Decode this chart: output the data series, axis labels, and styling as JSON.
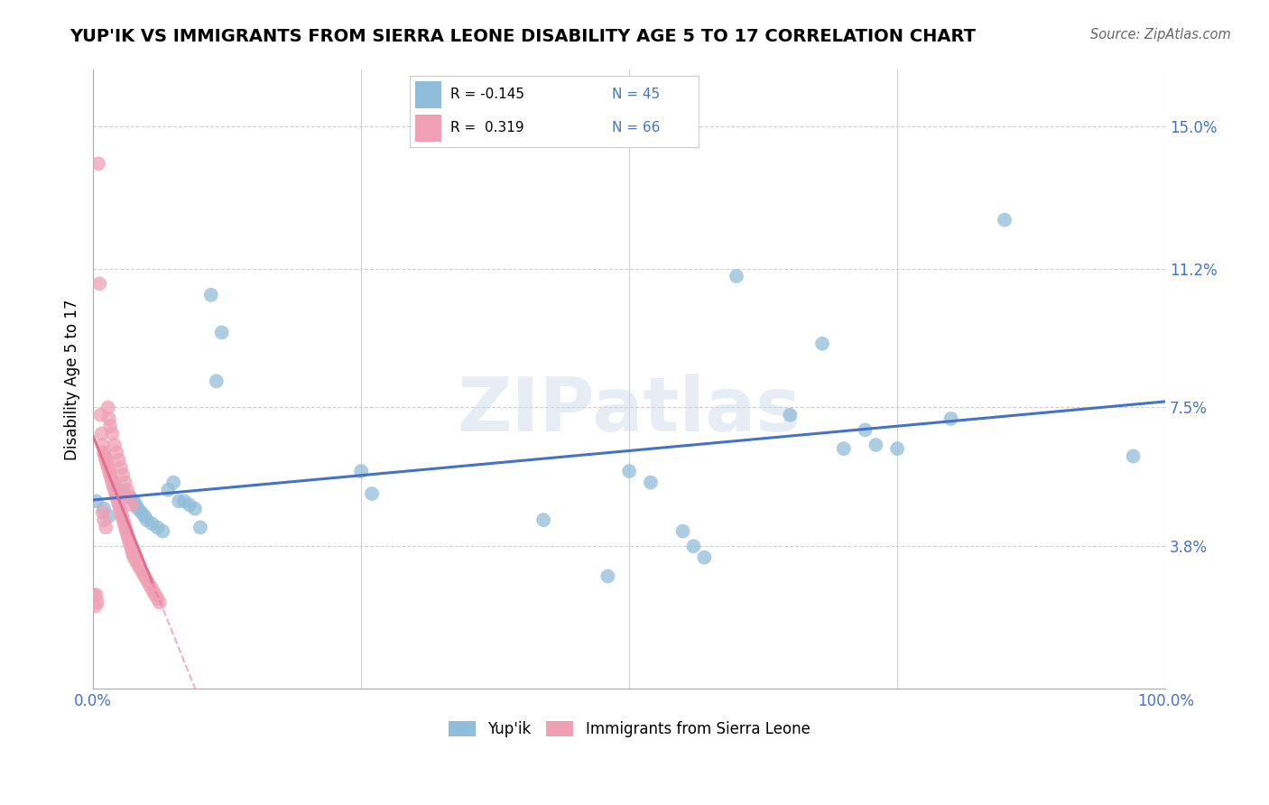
{
  "title": "YUP'IK VS IMMIGRANTS FROM SIERRA LEONE DISABILITY AGE 5 TO 17 CORRELATION CHART",
  "source": "Source: ZipAtlas.com",
  "ylabel": "Disability Age 5 to 17",
  "xlim": [
    0.0,
    1.0
  ],
  "ylim": [
    0.0,
    0.165
  ],
  "yticks": [
    0.038,
    0.075,
    0.112,
    0.15
  ],
  "ytick_labels": [
    "3.8%",
    "7.5%",
    "11.2%",
    "15.0%"
  ],
  "xtick_vals": [
    0.0,
    0.25,
    0.5,
    0.75,
    1.0
  ],
  "xtick_labels": [
    "0.0%",
    "",
    "",
    "",
    "100.0%"
  ],
  "legend_r1": "R = -0.145",
  "legend_n1": "N = 45",
  "legend_r2": "R =  0.319",
  "legend_n2": "N = 66",
  "blue_color": "#90bdd9",
  "pink_color": "#f0a0b5",
  "blue_line_color": "#4472C4",
  "pink_line_color": "#e07090",
  "grid_color": "#d0d0d0",
  "watermark": "ZIPatlas",
  "blue_scatter_x": [
    0.003,
    0.01,
    0.015,
    0.02,
    0.025,
    0.03,
    0.035,
    0.038,
    0.04,
    0.042,
    0.045,
    0.048,
    0.05,
    0.055,
    0.06,
    0.065,
    0.07,
    0.075,
    0.08,
    0.085,
    0.09,
    0.095,
    0.1,
    0.11,
    0.115,
    0.12,
    0.25,
    0.26,
    0.42,
    0.48,
    0.5,
    0.52,
    0.55,
    0.56,
    0.57,
    0.6,
    0.65,
    0.68,
    0.7,
    0.72,
    0.73,
    0.75,
    0.8,
    0.85,
    0.97
  ],
  "blue_scatter_y": [
    0.05,
    0.048,
    0.046,
    0.055,
    0.053,
    0.052,
    0.051,
    0.05,
    0.049,
    0.048,
    0.047,
    0.046,
    0.045,
    0.044,
    0.043,
    0.042,
    0.053,
    0.055,
    0.05,
    0.05,
    0.049,
    0.048,
    0.043,
    0.105,
    0.082,
    0.095,
    0.058,
    0.052,
    0.045,
    0.03,
    0.058,
    0.055,
    0.042,
    0.038,
    0.035,
    0.11,
    0.073,
    0.092,
    0.064,
    0.069,
    0.065,
    0.064,
    0.072,
    0.125,
    0.062
  ],
  "pink_scatter_x": [
    0.001,
    0.002,
    0.003,
    0.004,
    0.005,
    0.006,
    0.007,
    0.008,
    0.009,
    0.01,
    0.011,
    0.012,
    0.013,
    0.014,
    0.015,
    0.016,
    0.017,
    0.018,
    0.019,
    0.02,
    0.021,
    0.022,
    0.023,
    0.024,
    0.025,
    0.026,
    0.027,
    0.028,
    0.029,
    0.03,
    0.031,
    0.032,
    0.033,
    0.034,
    0.035,
    0.036,
    0.037,
    0.038,
    0.04,
    0.042,
    0.044,
    0.046,
    0.048,
    0.05,
    0.052,
    0.054,
    0.056,
    0.058,
    0.06,
    0.062,
    0.014,
    0.015,
    0.016,
    0.018,
    0.02,
    0.022,
    0.024,
    0.026,
    0.028,
    0.03,
    0.032,
    0.034,
    0.036,
    0.009,
    0.01,
    0.012
  ],
  "pink_scatter_y": [
    0.025,
    0.022,
    0.025,
    0.023,
    0.14,
    0.108,
    0.073,
    0.068,
    0.065,
    0.063,
    0.062,
    0.061,
    0.06,
    0.059,
    0.058,
    0.057,
    0.056,
    0.055,
    0.054,
    0.053,
    0.052,
    0.051,
    0.05,
    0.049,
    0.048,
    0.047,
    0.046,
    0.045,
    0.044,
    0.043,
    0.042,
    0.041,
    0.04,
    0.039,
    0.038,
    0.037,
    0.036,
    0.035,
    0.034,
    0.033,
    0.032,
    0.031,
    0.03,
    0.029,
    0.028,
    0.027,
    0.026,
    0.025,
    0.024,
    0.023,
    0.075,
    0.072,
    0.07,
    0.068,
    0.065,
    0.063,
    0.061,
    0.059,
    0.057,
    0.055,
    0.053,
    0.051,
    0.049,
    0.047,
    0.045,
    0.043
  ]
}
